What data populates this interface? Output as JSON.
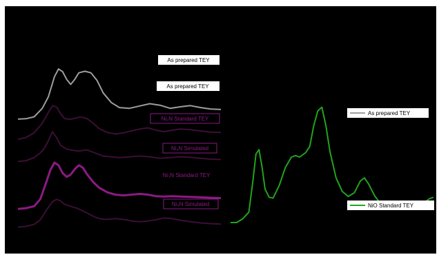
{
  "colors": {
    "figure_background": "#000000",
    "page_background": "#ffffff",
    "as_prepared": "#9e9e9e",
    "dark_purple": "#3c0f36",
    "magenta": "#8d1a84",
    "green": "#21a51c"
  },
  "chart_data": [
    {
      "type": "line",
      "panel": "left",
      "series": [
        {
          "name": "As prepared TEY",
          "color": "#9e9e9e",
          "label_color": "#000000",
          "label_bg": "#ffffff",
          "values": [
            [
              0,
              0.52
            ],
            [
              4,
              0.53
            ],
            [
              8,
              0.58
            ],
            [
              12,
              0.8
            ],
            [
              15,
              1.1
            ],
            [
              18,
              1.62
            ],
            [
              20,
              1.82
            ],
            [
              22,
              1.75
            ],
            [
              24,
              1.55
            ],
            [
              26,
              1.42
            ],
            [
              28,
              1.55
            ],
            [
              30,
              1.72
            ],
            [
              33,
              1.76
            ],
            [
              36,
              1.72
            ],
            [
              39,
              1.52
            ],
            [
              42,
              1.2
            ],
            [
              46,
              0.95
            ],
            [
              50,
              0.82
            ],
            [
              55,
              0.8
            ],
            [
              60,
              0.86
            ],
            [
              65,
              0.92
            ],
            [
              70,
              0.88
            ],
            [
              75,
              0.8
            ],
            [
              80,
              0.84
            ],
            [
              85,
              0.87
            ],
            [
              90,
              0.82
            ],
            [
              95,
              0.78
            ],
            [
              100,
              0.77
            ]
          ]
        },
        {
          "name": "Ni₂N Standard TEY",
          "color": "#3c0f36",
          "label_color": "#8d1a84",
          "label_bg": "#000000",
          "values": [
            [
              0,
              0.28
            ],
            [
              4,
              0.33
            ],
            [
              8,
              0.45
            ],
            [
              12,
              0.7
            ],
            [
              15,
              0.98
            ],
            [
              17,
              1.15
            ],
            [
              19,
              1.12
            ],
            [
              21,
              0.95
            ],
            [
              23,
              0.82
            ],
            [
              26,
              0.8
            ],
            [
              29,
              0.84
            ],
            [
              31,
              0.86
            ],
            [
              34,
              0.82
            ],
            [
              37,
              0.7
            ],
            [
              40,
              0.56
            ],
            [
              44,
              0.46
            ],
            [
              48,
              0.42
            ],
            [
              52,
              0.45
            ],
            [
              56,
              0.5
            ],
            [
              60,
              0.55
            ],
            [
              64,
              0.58
            ],
            [
              68,
              0.52
            ],
            [
              72,
              0.48
            ],
            [
              76,
              0.52
            ],
            [
              80,
              0.55
            ],
            [
              85,
              0.53
            ],
            [
              90,
              0.5
            ],
            [
              95,
              0.47
            ],
            [
              100,
              0.46
            ]
          ]
        },
        {
          "name": "Ni₂N Simulated",
          "color": "#3c0f36",
          "label_color": "#8d1a84",
          "label_bg": "#000000",
          "values": [
            [
              0,
              0.28
            ],
            [
              4,
              0.3
            ],
            [
              8,
              0.38
            ],
            [
              11,
              0.5
            ],
            [
              13,
              0.62
            ],
            [
              15,
              0.82
            ],
            [
              17,
              1.05
            ],
            [
              19,
              0.9
            ],
            [
              21,
              0.7
            ],
            [
              24,
              0.6
            ],
            [
              27,
              0.57
            ],
            [
              30,
              0.55
            ],
            [
              34,
              0.58
            ],
            [
              38,
              0.5
            ],
            [
              42,
              0.42
            ],
            [
              46,
              0.4
            ],
            [
              50,
              0.38
            ],
            [
              55,
              0.4
            ],
            [
              60,
              0.42
            ],
            [
              65,
              0.4
            ],
            [
              70,
              0.36
            ],
            [
              75,
              0.38
            ],
            [
              80,
              0.4
            ],
            [
              85,
              0.39
            ],
            [
              90,
              0.36
            ],
            [
              95,
              0.34
            ],
            [
              100,
              0.33
            ]
          ]
        },
        {
          "name": "Ni₃N Standard TEY",
          "color": "#8d1a84",
          "label_color": "#8d1a84",
          "label_bg": "#000000",
          "values": [
            [
              0,
              0.05
            ],
            [
              4,
              0.07
            ],
            [
              8,
              0.12
            ],
            [
              11,
              0.3
            ],
            [
              14,
              0.75
            ],
            [
              16,
              1.06
            ],
            [
              18,
              1.25
            ],
            [
              20,
              1.18
            ],
            [
              22,
              0.98
            ],
            [
              24,
              0.88
            ],
            [
              26,
              0.94
            ],
            [
              28,
              1.08
            ],
            [
              30,
              1.18
            ],
            [
              32,
              1.12
            ],
            [
              34,
              0.95
            ],
            [
              37,
              0.75
            ],
            [
              40,
              0.6
            ],
            [
              44,
              0.48
            ],
            [
              48,
              0.42
            ],
            [
              52,
              0.4
            ],
            [
              56,
              0.42
            ],
            [
              60,
              0.44
            ],
            [
              64,
              0.42
            ],
            [
              68,
              0.38
            ],
            [
              72,
              0.37
            ],
            [
              76,
              0.38
            ],
            [
              80,
              0.37
            ],
            [
              85,
              0.36
            ],
            [
              90,
              0.35
            ],
            [
              95,
              0.34
            ],
            [
              100,
              0.33
            ]
          ]
        },
        {
          "name": "Ni₃N Simulated",
          "color": "#3c0f36",
          "label_color": "#8d1a84",
          "label_bg": "#000000",
          "values": [
            [
              0,
              0.06
            ],
            [
              4,
              0.08
            ],
            [
              8,
              0.13
            ],
            [
              11,
              0.25
            ],
            [
              14,
              0.5
            ],
            [
              17,
              0.72
            ],
            [
              19,
              0.78
            ],
            [
              21,
              0.74
            ],
            [
              23,
              0.65
            ],
            [
              26,
              0.6
            ],
            [
              29,
              0.55
            ],
            [
              32,
              0.48
            ],
            [
              35,
              0.4
            ],
            [
              38,
              0.32
            ],
            [
              41,
              0.27
            ],
            [
              44,
              0.26
            ],
            [
              48,
              0.28
            ],
            [
              52,
              0.26
            ],
            [
              56,
              0.22
            ],
            [
              60,
              0.2
            ],
            [
              64,
              0.22
            ],
            [
              68,
              0.25
            ],
            [
              72,
              0.3
            ],
            [
              76,
              0.28
            ],
            [
              80,
              0.24
            ],
            [
              85,
              0.2
            ],
            [
              90,
              0.17
            ],
            [
              95,
              0.15
            ],
            [
              100,
              0.14
            ]
          ]
        }
      ]
    },
    {
      "type": "line",
      "panel": "right",
      "series": [
        {
          "name": "As prepared TEY",
          "color": "#ffffff",
          "label_color": "#000000",
          "label_bg": "#ffffff",
          "values": [
            [
              0,
              0
            ],
            [
              3,
              0
            ],
            [
              6,
              0.05
            ],
            [
              9,
              0.14
            ],
            [
              11,
              0.55
            ],
            [
              12.5,
              0.92
            ],
            [
              14,
              0.98
            ],
            [
              15.5,
              0.75
            ],
            [
              17,
              0.45
            ],
            [
              19,
              0.34
            ],
            [
              21,
              0.33
            ],
            [
              24,
              0.5
            ],
            [
              27,
              0.74
            ],
            [
              30,
              0.88
            ],
            [
              32,
              0.9
            ],
            [
              34,
              0.88
            ],
            [
              37,
              0.94
            ],
            [
              39,
              1.02
            ],
            [
              41,
              1.3
            ],
            [
              43,
              1.5
            ],
            [
              45,
              1.55
            ],
            [
              47,
              1.3
            ],
            [
              49,
              0.95
            ],
            [
              52,
              0.6
            ],
            [
              55,
              0.42
            ],
            [
              58,
              0.35
            ],
            [
              61,
              0.4
            ],
            [
              64,
              0.56
            ],
            [
              66,
              0.6
            ],
            [
              68,
              0.52
            ],
            [
              71,
              0.36
            ],
            [
              74,
              0.25
            ],
            [
              78,
              0.22
            ],
            [
              82,
              0.2
            ],
            [
              86,
              0.2
            ],
            [
              90,
              0.22
            ],
            [
              93,
              0.24
            ],
            [
              96,
              0.28
            ],
            [
              98,
              0.32
            ],
            [
              100,
              0.34
            ]
          ]
        },
        {
          "name": "NiO Standard TEY",
          "color": "#21a51c",
          "label_color": "#000000",
          "label_bg": "#ffffff",
          "values": [
            [
              0,
              0
            ],
            [
              3,
              0
            ],
            [
              6,
              0.05
            ],
            [
              9,
              0.14
            ],
            [
              11,
              0.55
            ],
            [
              12.5,
              0.92
            ],
            [
              14,
              0.98
            ],
            [
              15.5,
              0.75
            ],
            [
              17,
              0.45
            ],
            [
              19,
              0.34
            ],
            [
              21,
              0.33
            ],
            [
              24,
              0.5
            ],
            [
              27,
              0.74
            ],
            [
              30,
              0.88
            ],
            [
              32,
              0.9
            ],
            [
              34,
              0.88
            ],
            [
              37,
              0.94
            ],
            [
              39,
              1.02
            ],
            [
              41,
              1.3
            ],
            [
              43,
              1.5
            ],
            [
              45,
              1.55
            ],
            [
              47,
              1.3
            ],
            [
              49,
              0.95
            ],
            [
              52,
              0.6
            ],
            [
              55,
              0.42
            ],
            [
              58,
              0.35
            ],
            [
              61,
              0.4
            ],
            [
              64,
              0.56
            ],
            [
              66,
              0.6
            ],
            [
              68,
              0.52
            ],
            [
              71,
              0.36
            ],
            [
              74,
              0.25
            ],
            [
              78,
              0.22
            ],
            [
              82,
              0.2
            ],
            [
              86,
              0.2
            ],
            [
              90,
              0.22
            ],
            [
              93,
              0.24
            ],
            [
              96,
              0.28
            ],
            [
              98,
              0.32
            ],
            [
              100,
              0.34
            ]
          ]
        }
      ]
    }
  ]
}
